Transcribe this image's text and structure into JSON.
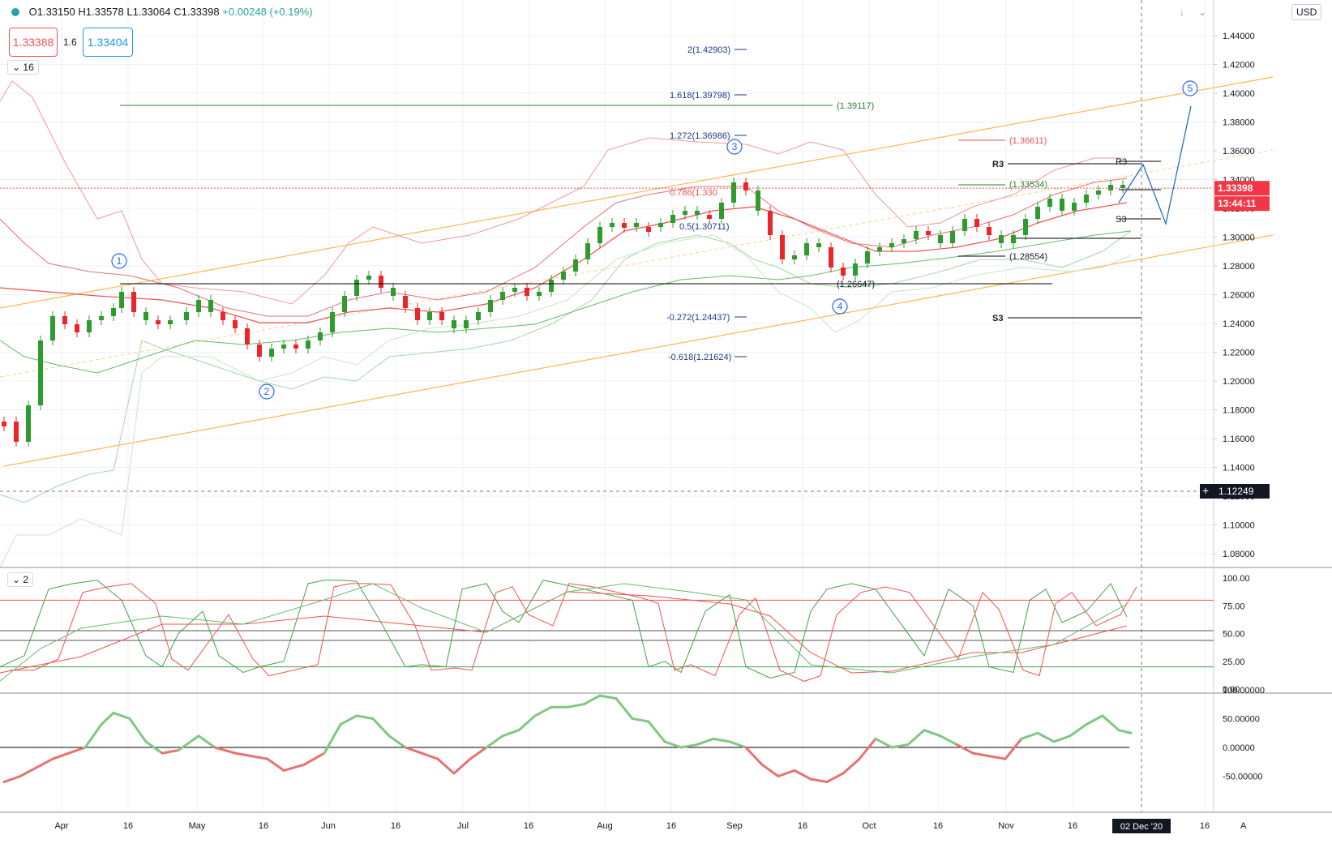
{
  "header": {
    "open": "O1.33150",
    "high": "H1.33578",
    "low": "L1.33064",
    "close": "C1.33398",
    "change": "+0.00248 (+0.19%)"
  },
  "trade": {
    "sell": "1.33388",
    "spread": "1.6",
    "buy": "1.33404"
  },
  "indicator_labels": {
    "main": "16",
    "stoch": "2"
  },
  "currency": "USD",
  "price_axis": [
    "1.44000",
    "1.42000",
    "1.40000",
    "1.38000",
    "1.36000",
    "1.34000",
    "1.32000",
    "1.30000",
    "1.28000",
    "1.26000",
    "1.24000",
    "1.22000",
    "1.20000",
    "1.18000",
    "1.16000",
    "1.14000",
    "1.12000",
    "1.10000",
    "1.08000"
  ],
  "last_price": "1.33398",
  "countdown": "13:44:11",
  "crosshair_price": "1.12249",
  "stoch_axis": [
    "100.00",
    "75.00",
    "50.00",
    "25.00",
    "0.00"
  ],
  "cci_axis": [
    "100.00000",
    "50.00000",
    "0.00000",
    "-50.00000"
  ],
  "time_axis": [
    "Apr",
    "16",
    "May",
    "16",
    "Jun",
    "16",
    "Jul",
    "16",
    "Aug",
    "16",
    "Sep",
    "16",
    "Oct",
    "16",
    "Nov",
    "16",
    "16"
  ],
  "crosshair_time": "02 Dec '20",
  "annotations": {
    "fib": [
      "2(1.42903)",
      "1.618(1.39798)",
      "1.272(1.36986)",
      "0.786(1.330",
      "0.5(1.30711)",
      "-0.272(1.24437)",
      "-0.618(1.21624)"
    ],
    "levels": [
      "(1.39117)",
      "(1.36611)",
      "(1.33534)",
      "(1.28554)",
      "(1.26647)"
    ],
    "pivots": [
      "R3",
      "R3",
      "S3",
      "S3"
    ],
    "waves": [
      "1",
      "2",
      "3",
      "4",
      "5"
    ]
  },
  "colors": {
    "up": "#26a69a",
    "down": "#ef5350",
    "blue": "#2962ff",
    "orange": "#ff9800",
    "candle_up": "#2e9b2e",
    "candle_down": "#e8262b"
  }
}
